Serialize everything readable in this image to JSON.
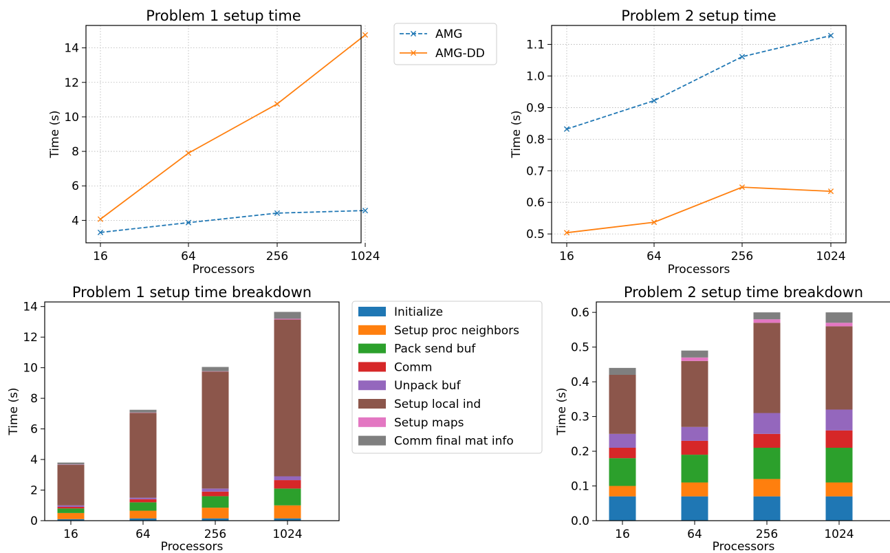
{
  "colors": {
    "amg": "#1f77b4",
    "amgdd": "#ff7f0e",
    "stack": [
      "#1f77b4",
      "#ff7f0e",
      "#2ca02c",
      "#d62728",
      "#9467bd",
      "#8c564b",
      "#e377c2",
      "#7f7f7f"
    ]
  },
  "chart_data": [
    {
      "type": "line",
      "title": "Problem 1 setup time",
      "xlabel": "Processors",
      "ylabel": "Time (s)",
      "categories": [
        "16",
        "64",
        "256",
        "1024"
      ],
      "ylim": [
        2.7,
        15.3
      ],
      "yticks": [
        4,
        6,
        8,
        10,
        12,
        14
      ],
      "grid": true,
      "legend": "outside-right",
      "series": [
        {
          "name": "AMG",
          "style": "dashed",
          "marker": "x",
          "values": [
            3.3,
            3.87,
            4.42,
            4.57
          ]
        },
        {
          "name": "AMG-DD",
          "style": "solid",
          "marker": "x",
          "values": [
            4.07,
            7.9,
            10.75,
            14.75
          ]
        }
      ]
    },
    {
      "type": "line",
      "title": "Problem 2 setup time",
      "xlabel": "Processors",
      "ylabel": "Time (s)",
      "categories": [
        "16",
        "64",
        "256",
        "1024"
      ],
      "ylim": [
        0.472,
        1.16
      ],
      "yticks": [
        "0.5",
        "0.6",
        "0.7",
        "0.8",
        "0.9",
        "1.0",
        "1.1"
      ],
      "grid": true,
      "series": [
        {
          "name": "AMG",
          "style": "dashed",
          "marker": "x",
          "values": [
            0.832,
            0.922,
            1.061,
            1.128
          ]
        },
        {
          "name": "AMG-DD",
          "style": "solid",
          "marker": "x",
          "values": [
            0.504,
            0.537,
            0.648,
            0.635
          ]
        }
      ]
    },
    {
      "type": "bar",
      "stacked": true,
      "title": "Problem 1 setup time breakdown",
      "xlabel": "Processors",
      "ylabel": "Time (s)",
      "categories": [
        "16",
        "64",
        "256",
        "1024"
      ],
      "ylim": [
        0,
        14.3
      ],
      "yticks": [
        0,
        2,
        4,
        6,
        8,
        10,
        12,
        14
      ],
      "grid": false,
      "legend": "outside-right",
      "series": [
        {
          "name": "Initialize",
          "values": [
            0.1,
            0.15,
            0.15,
            0.15
          ]
        },
        {
          "name": "Setup proc neighbors",
          "values": [
            0.4,
            0.5,
            0.7,
            0.85
          ]
        },
        {
          "name": "Pack send buf",
          "values": [
            0.3,
            0.55,
            0.75,
            1.1
          ]
        },
        {
          "name": "Comm",
          "values": [
            0.1,
            0.2,
            0.3,
            0.55
          ]
        },
        {
          "name": "Unpack buf",
          "values": [
            0.1,
            0.1,
            0.2,
            0.25
          ]
        },
        {
          "name": "Setup local ind",
          "values": [
            2.65,
            5.55,
            7.65,
            10.25
          ]
        },
        {
          "name": "Setup maps",
          "values": [
            0.02,
            0.02,
            0.02,
            0.05
          ]
        },
        {
          "name": "Comm final mat info",
          "values": [
            0.13,
            0.18,
            0.28,
            0.45
          ]
        }
      ]
    },
    {
      "type": "bar",
      "stacked": true,
      "title": "Problem 2 setup time breakdown",
      "xlabel": "Processors",
      "ylabel": "Time (s)",
      "categories": [
        "16",
        "64",
        "256",
        "1024"
      ],
      "ylim": [
        0,
        0.63
      ],
      "yticks": [
        "0.0",
        "0.1",
        "0.2",
        "0.3",
        "0.4",
        "0.5",
        "0.6"
      ],
      "grid": false,
      "series": [
        {
          "name": "Initialize",
          "values": [
            0.07,
            0.07,
            0.07,
            0.07
          ]
        },
        {
          "name": "Setup proc neighbors",
          "values": [
            0.03,
            0.04,
            0.05,
            0.04
          ]
        },
        {
          "name": "Pack send buf",
          "values": [
            0.08,
            0.08,
            0.09,
            0.1
          ]
        },
        {
          "name": "Comm",
          "values": [
            0.03,
            0.04,
            0.04,
            0.05
          ]
        },
        {
          "name": "Unpack buf",
          "values": [
            0.04,
            0.04,
            0.06,
            0.06
          ]
        },
        {
          "name": "Setup local ind",
          "values": [
            0.17,
            0.19,
            0.26,
            0.24
          ]
        },
        {
          "name": "Setup maps",
          "values": [
            0.0,
            0.01,
            0.01,
            0.01
          ]
        },
        {
          "name": "Comm final mat info",
          "values": [
            0.02,
            0.02,
            0.02,
            0.03
          ]
        }
      ]
    }
  ]
}
